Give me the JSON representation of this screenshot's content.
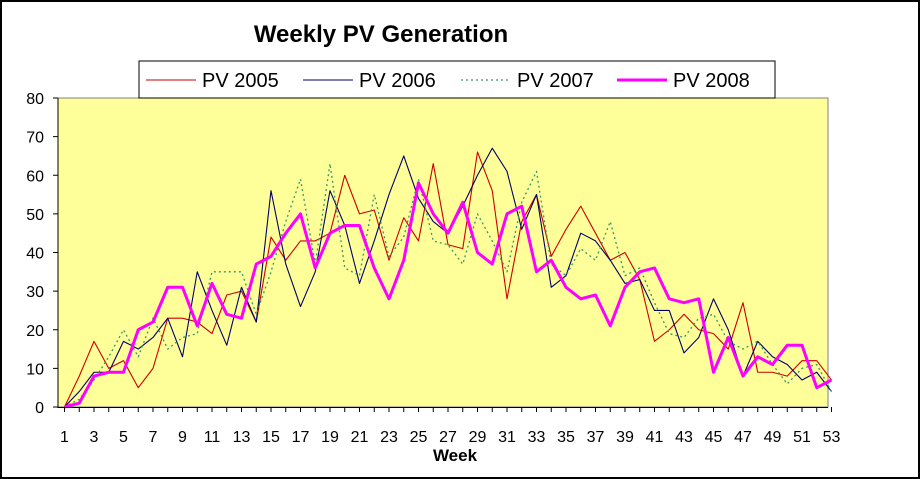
{
  "chart_data": {
    "type": "line",
    "title": "Weekly PV Generation",
    "xlabel": "Week",
    "ylabel": "",
    "ylim": [
      0,
      80
    ],
    "yticks": [
      0,
      10,
      20,
      30,
      40,
      50,
      60,
      70,
      80
    ],
    "xticks": [
      1,
      3,
      5,
      7,
      9,
      11,
      13,
      15,
      17,
      19,
      21,
      23,
      25,
      27,
      29,
      31,
      33,
      35,
      37,
      39,
      41,
      43,
      45,
      47,
      49,
      51,
      53
    ],
    "grid": false,
    "legend_position": "top",
    "plot_background": "#FFFF99",
    "series": [
      {
        "name": "PV 2005",
        "color": "#CC0000",
        "style": "solid",
        "values": [
          0,
          8,
          17,
          10,
          12,
          5,
          10,
          23,
          23,
          22,
          19,
          29,
          30,
          22,
          44,
          38,
          43,
          43,
          45,
          60,
          50,
          51,
          38,
          49,
          43,
          63,
          42,
          41,
          66,
          56,
          28,
          48,
          55,
          39,
          46,
          52,
          45,
          38,
          40,
          33,
          17,
          20,
          24,
          20,
          19,
          15,
          27,
          9,
          9,
          8,
          12,
          12,
          7
        ]
      },
      {
        "name": "PV 2006",
        "color": "#000066",
        "style": "solid",
        "values": [
          0,
          4,
          9,
          9,
          17,
          15,
          18,
          23,
          13,
          35,
          25,
          16,
          31,
          22,
          56,
          37,
          26,
          35,
          56,
          47,
          32,
          43,
          55,
          65,
          54,
          48,
          45,
          52,
          60,
          67,
          61,
          46,
          55,
          31,
          34,
          45,
          43,
          38,
          32,
          33,
          25,
          25,
          14,
          18,
          28,
          20,
          8,
          17,
          13,
          11,
          7,
          9,
          4
        ]
      },
      {
        "name": "PV 2007",
        "color": "#339966",
        "style": "dotted",
        "values": [
          0,
          2,
          7,
          13,
          20,
          13,
          23,
          15,
          18,
          19,
          35,
          35,
          35,
          24,
          35,
          48,
          59,
          37,
          63,
          36,
          34,
          55,
          39,
          44,
          59,
          43,
          42,
          37,
          50,
          43,
          35,
          53,
          61,
          37,
          34,
          41,
          38,
          48,
          34,
          36,
          27,
          19,
          18,
          23,
          24,
          17,
          15,
          17,
          11,
          6,
          10,
          11,
          4
        ]
      },
      {
        "name": "PV 2008",
        "color": "#FF00FF",
        "style": "thick",
        "values": [
          0,
          1,
          8,
          9,
          9,
          20,
          22,
          31,
          31,
          21,
          32,
          24,
          23,
          37,
          39,
          45,
          50,
          36,
          45,
          47,
          47,
          36,
          28,
          38,
          58,
          50,
          45,
          53,
          40,
          37,
          50,
          52,
          35,
          38,
          31,
          28,
          29,
          21,
          31,
          35,
          36,
          28,
          27,
          28,
          9,
          18,
          8,
          13,
          11,
          16,
          16,
          5,
          7
        ]
      }
    ]
  }
}
